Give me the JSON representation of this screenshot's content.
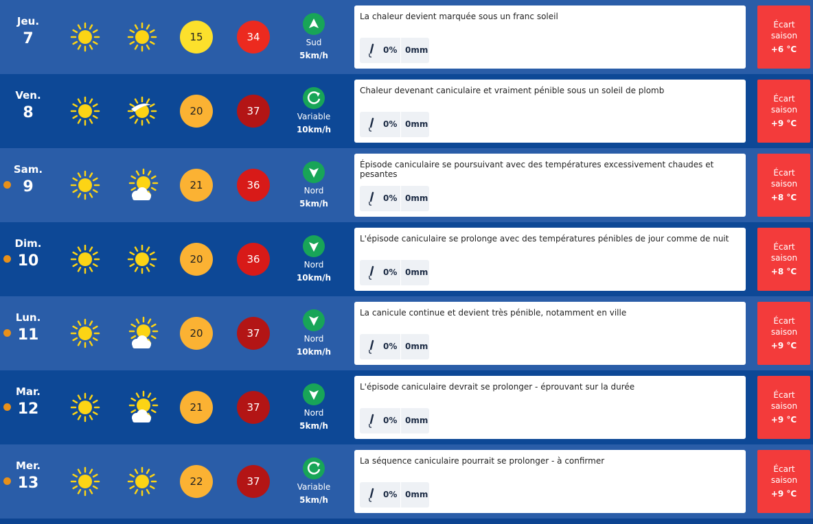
{
  "rows": [
    {
      "day": "Jeu.",
      "date": "7",
      "dot": false,
      "sky": [
        "sun",
        "sun"
      ],
      "min": 15,
      "min_color": "#fce02c",
      "max": 34,
      "max_color": "#ec2a1f",
      "wind_arrow": "up",
      "wind_dir": "Sud",
      "wind_speed": "5km/h",
      "text": "La chaleur devient marquée sous un franc soleil",
      "rain_prob": "0%",
      "rain": "0mm",
      "ecart_label": "Écart saison",
      "ecart": "+6 °C"
    },
    {
      "day": "Ven.",
      "date": "8",
      "dot": false,
      "sky": [
        "sun",
        "sun-veil"
      ],
      "min": 20,
      "min_color": "#fbb233",
      "max": 37,
      "max_color": "#b31515",
      "wind_arrow": "variable",
      "wind_dir": "Variable",
      "wind_speed": "10km/h",
      "text": "Chaleur devenant caniculaire et vraiment pénible sous un soleil de plomb",
      "rain_prob": "0%",
      "rain": "0mm",
      "ecart_label": "Écart saison",
      "ecart": "+9 °C"
    },
    {
      "day": "Sam.",
      "date": "9",
      "dot": true,
      "sky": [
        "sun",
        "sun-cloud"
      ],
      "min": 21,
      "min_color": "#fbb233",
      "max": 36,
      "max_color": "#d81a18",
      "wind_arrow": "down",
      "wind_dir": "Nord",
      "wind_speed": "5km/h",
      "text": "Épisode caniculaire se poursuivant avec des températures excessivement chaudes et pesantes",
      "rain_prob": "0%",
      "rain": "0mm",
      "ecart_label": "Écart saison",
      "ecart": "+8 °C"
    },
    {
      "day": "Dim.",
      "date": "10",
      "dot": true,
      "sky": [
        "sun",
        "sun"
      ],
      "min": 20,
      "min_color": "#fbb233",
      "max": 36,
      "max_color": "#d81a18",
      "wind_arrow": "down",
      "wind_dir": "Nord",
      "wind_speed": "10km/h",
      "text": "L'épisode caniculaire se prolonge avec des températures pénibles de jour comme de nuit",
      "rain_prob": "0%",
      "rain": "0mm",
      "ecart_label": "Écart saison",
      "ecart": "+8 °C"
    },
    {
      "day": "Lun.",
      "date": "11",
      "dot": true,
      "sky": [
        "sun",
        "sun-cloud"
      ],
      "min": 20,
      "min_color": "#fbb233",
      "max": 37,
      "max_color": "#b31515",
      "wind_arrow": "down",
      "wind_dir": "Nord",
      "wind_speed": "10km/h",
      "text": "La canicule continue et devient très pénible, notamment en ville",
      "rain_prob": "0%",
      "rain": "0mm",
      "ecart_label": "Écart saison",
      "ecart": "+9 °C"
    },
    {
      "day": "Mar.",
      "date": "12",
      "dot": true,
      "sky": [
        "sun",
        "sun-cloud"
      ],
      "min": 21,
      "min_color": "#fbb233",
      "max": 37,
      "max_color": "#b31515",
      "wind_arrow": "down",
      "wind_dir": "Nord",
      "wind_speed": "5km/h",
      "text": "L'épisode caniculaire devrait se prolonger - éprouvant sur la durée",
      "rain_prob": "0%",
      "rain": "0mm",
      "ecart_label": "Écart saison",
      "ecart": "+9 °C"
    },
    {
      "day": "Mer.",
      "date": "13",
      "dot": true,
      "sky": [
        "sun",
        "sun"
      ],
      "min": 22,
      "min_color": "#fbb233",
      "max": 37,
      "max_color": "#b31515",
      "wind_arrow": "variable",
      "wind_dir": "Variable",
      "wind_speed": "5km/h",
      "text": "La séquence caniculaire pourrait se prolonger - à confirmer",
      "rain_prob": "0%",
      "rain": "0mm",
      "ecart_label": "Écart saison",
      "ecart": "+9 °C"
    }
  ]
}
